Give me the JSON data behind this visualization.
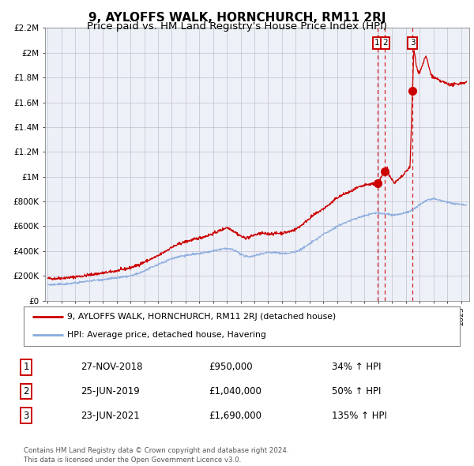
{
  "title": "9, AYLOFFS WALK, HORNCHURCH, RM11 2RJ",
  "subtitle": "Price paid vs. HM Land Registry's House Price Index (HPI)",
  "title_fontsize": 11,
  "subtitle_fontsize": 9.5,
  "background_color": "#ffffff",
  "plot_bg_color": "#eef0f8",
  "grid_color": "#bbbbcc",
  "red_line_color": "#cc0000",
  "blue_line_color": "#88aadd",
  "sale_marker_color": "#cc0000",
  "dashed_line_color": "#cc0000",
  "sales": [
    {
      "label": "1",
      "date_num": 2018.92,
      "price": 950000
    },
    {
      "label": "2",
      "date_num": 2019.49,
      "price": 1040000
    },
    {
      "label": "3",
      "date_num": 2021.48,
      "price": 1690000
    }
  ],
  "legend_entries": [
    "9, AYLOFFS WALK, HORNCHURCH, RM11 2RJ (detached house)",
    "HPI: Average price, detached house, Havering"
  ],
  "table_rows": [
    [
      "1",
      "27-NOV-2018",
      "£950,000",
      "34% ↑ HPI"
    ],
    [
      "2",
      "25-JUN-2019",
      "£1,040,000",
      "50% ↑ HPI"
    ],
    [
      "3",
      "23-JUN-2021",
      "£1,690,000",
      "135% ↑ HPI"
    ]
  ],
  "footnote": "Contains HM Land Registry data © Crown copyright and database right 2024.\nThis data is licensed under the Open Government Licence v3.0.",
  "ylim": [
    0,
    2200000
  ],
  "yticks": [
    0,
    200000,
    400000,
    600000,
    800000,
    1000000,
    1200000,
    1400000,
    1600000,
    1800000,
    2000000,
    2200000
  ],
  "ytick_labels": [
    "£0",
    "£200K",
    "£400K",
    "£600K",
    "£800K",
    "£1M",
    "£1.2M",
    "£1.4M",
    "£1.6M",
    "£1.8M",
    "£2M",
    "£2.2M"
  ],
  "xlim_start": 1994.8,
  "xlim_end": 2025.6,
  "xticks": [
    1995,
    1996,
    1997,
    1998,
    1999,
    2000,
    2001,
    2002,
    2003,
    2004,
    2005,
    2006,
    2007,
    2008,
    2009,
    2010,
    2011,
    2012,
    2013,
    2014,
    2015,
    2016,
    2017,
    2018,
    2019,
    2020,
    2021,
    2022,
    2023,
    2024,
    2025
  ]
}
